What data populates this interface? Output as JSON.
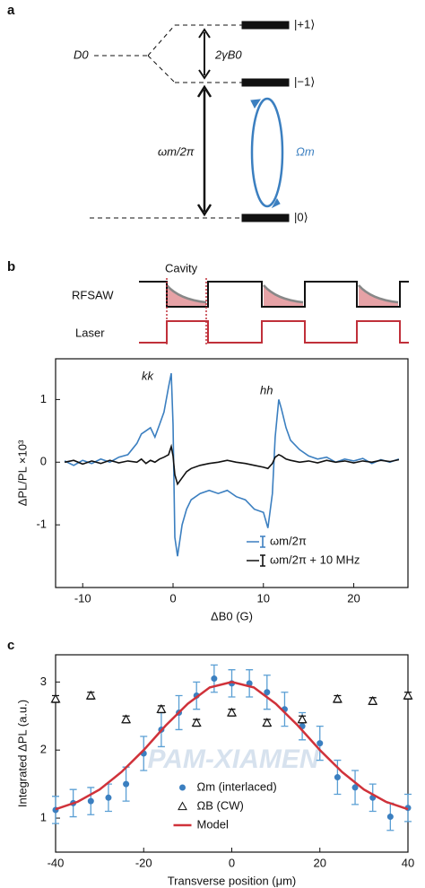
{
  "panel_labels": [
    "a",
    "b",
    "c"
  ],
  "diagram": {
    "d0": "D0",
    "levels": [
      "|+1⟩",
      "|−1⟩",
      "|0⟩"
    ],
    "splitting": "2γB0",
    "transition": "ωm/2π",
    "drive": "Ωm"
  },
  "timing": {
    "cavity": "Cavity",
    "rf": "RFSAW",
    "laser": "Laser"
  },
  "watermark": "PAM-XIAMEN",
  "chart_data": [
    {
      "type": "line",
      "xlabel": "ΔB0 (G)",
      "ylabel": "ΔPL/PL ×10³",
      "annotations": [
        "kk",
        "hh"
      ],
      "xlim": [
        -13,
        26
      ],
      "ylim": [
        -2,
        1.65
      ],
      "xticks": [
        -10,
        0,
        10,
        20
      ],
      "yticks": [
        -1,
        0,
        1
      ],
      "legend": "lower right",
      "x": [
        -12,
        -11,
        -10,
        -9,
        -8,
        -7,
        -6,
        -5,
        -4,
        -3.5,
        -3,
        -2.5,
        -2,
        -1.5,
        -1,
        -0.5,
        -0.2,
        0,
        0.2,
        0.5,
        1,
        1.5,
        2,
        3,
        4,
        5,
        6,
        7,
        8,
        9,
        10,
        10.5,
        11,
        11.3,
        11.7,
        12,
        12.5,
        13,
        14,
        15,
        16,
        17,
        18,
        19,
        20,
        21,
        22,
        23,
        24,
        25
      ],
      "series": [
        {
          "name": "ωm/2π",
          "color": "#3b7fc0",
          "marker": "line",
          "values": [
            0.02,
            -0.05,
            0.03,
            -0.02,
            0.05,
            0,
            0.08,
            0.12,
            0.3,
            0.45,
            0.5,
            0.55,
            0.4,
            0.6,
            0.8,
            1.2,
            1.42,
            0.6,
            -1.2,
            -1.5,
            -1,
            -0.75,
            -0.6,
            -0.5,
            -0.45,
            -0.5,
            -0.45,
            -0.55,
            -0.6,
            -0.75,
            -0.8,
            -1.05,
            -0.5,
            0.4,
            1,
            0.85,
            0.55,
            0.35,
            0.2,
            0.1,
            0.05,
            0.08,
            0,
            0.05,
            0.02,
            0.06,
            -0.02,
            0.04,
            0,
            0.05
          ]
        },
        {
          "name": "ωm/2π + 10 MHz",
          "color": "#111111",
          "marker": "line",
          "values": [
            0,
            0.03,
            -0.03,
            0.02,
            -0.02,
            0.03,
            -0.01,
            0.02,
            0,
            0.05,
            -0.02,
            0.03,
            0,
            0.05,
            0.08,
            0.12,
            0.25,
            0.1,
            -0.2,
            -0.35,
            -0.25,
            -0.15,
            -0.1,
            -0.05,
            -0.02,
            0,
            0.03,
            0,
            -0.02,
            -0.05,
            -0.08,
            -0.1,
            -0.02,
            0.08,
            0.12,
            0.1,
            0.05,
            0.03,
            0,
            0.02,
            -0.01,
            0.03,
            0,
            0.02,
            -0.01,
            0.02,
            0,
            0.03,
            0.01,
            0.04
          ]
        }
      ]
    },
    {
      "type": "scatter",
      "xlabel": "Transverse position (μm)",
      "ylabel": "Integrated ΔPL (a.u.)",
      "xlim": [
        -40,
        40
      ],
      "ylim": [
        0.5,
        3.4
      ],
      "xticks": [
        -40,
        -20,
        0,
        20,
        40
      ],
      "yticks": [
        1,
        2,
        3
      ],
      "legend": "lower center",
      "series": [
        {
          "name": "Ωm (interlaced)",
          "color": "#3b7fc0",
          "marker": "circle",
          "x": [
            -40,
            -36,
            -32,
            -28,
            -24,
            -20,
            -16,
            -12,
            -8,
            -4,
            0,
            4,
            8,
            12,
            16,
            20,
            24,
            28,
            32,
            36,
            40
          ],
          "values": [
            1.12,
            1.22,
            1.25,
            1.3,
            1.5,
            1.95,
            2.3,
            2.55,
            2.8,
            3.05,
            2.98,
            2.98,
            2.85,
            2.6,
            2.35,
            2.1,
            1.6,
            1.45,
            1.3,
            1.02,
            1.15
          ],
          "errors": [
            0.2,
            0.2,
            0.2,
            0.2,
            0.25,
            0.25,
            0.25,
            0.25,
            0.2,
            0.2,
            0.2,
            0.2,
            0.25,
            0.25,
            0.2,
            0.25,
            0.25,
            0.25,
            0.2,
            0.2,
            0.2
          ]
        },
        {
          "name": "ΩB (CW)",
          "color": "#111111",
          "marker": "triangle",
          "x": [
            -40,
            -32,
            -24,
            -16,
            -8,
            0,
            8,
            16,
            24,
            32,
            40
          ],
          "values": [
            2.75,
            2.8,
            2.45,
            2.6,
            2.4,
            2.55,
            2.4,
            2.45,
            2.75,
            2.72,
            2.8
          ],
          "errors": [
            0.05,
            0.05,
            0.05,
            0.05,
            0.05,
            0.05,
            0.05,
            0.05,
            0.05,
            0.05,
            0.05
          ]
        },
        {
          "name": "Model",
          "color": "#d0323a",
          "marker": "line",
          "x": [
            -40,
            -35,
            -30,
            -25,
            -20,
            -15,
            -10,
            -5,
            0,
            5,
            10,
            15,
            20,
            25,
            30,
            35,
            40
          ],
          "values": [
            1.13,
            1.24,
            1.42,
            1.68,
            2,
            2.36,
            2.68,
            2.92,
            3,
            2.92,
            2.68,
            2.36,
            2,
            1.68,
            1.42,
            1.24,
            1.13
          ]
        }
      ]
    }
  ]
}
